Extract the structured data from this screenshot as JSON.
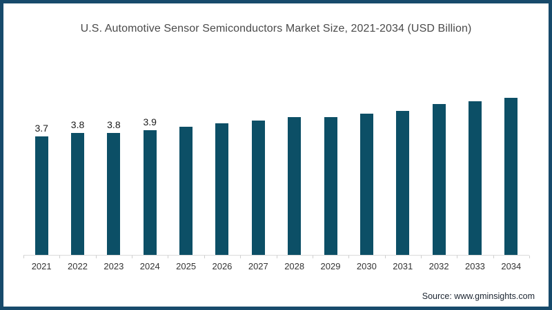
{
  "page": {
    "border_color": "#174a6b",
    "background": "#ffffff"
  },
  "source": {
    "label": "Source: www.gminsights.com"
  },
  "chart_data": {
    "type": "bar",
    "title": "U.S. Automotive Sensor Semiconductors Market Size, 2021-2034 (USD Billion)",
    "categories": [
      "2021",
      "2022",
      "2023",
      "2024",
      "2025",
      "2026",
      "2027",
      "2028",
      "2029",
      "2030",
      "2031",
      "2032",
      "2033",
      "2034"
    ],
    "values": [
      3.7,
      3.8,
      3.8,
      3.9,
      4.0,
      4.1,
      4.2,
      4.3,
      4.3,
      4.4,
      4.5,
      4.7,
      4.8,
      4.9
    ],
    "data_labels": [
      "3.7",
      "3.8",
      "3.8",
      "3.9",
      "",
      "",
      "",
      "",
      "",
      "",
      "",
      "",
      "",
      ""
    ],
    "xlabel": "",
    "ylabel": "",
    "ylim": [
      0,
      5.5
    ],
    "grid": false,
    "legend": false,
    "bar_color": "#0c4f66",
    "axis_color": "#d9d9d9",
    "value_label_color": "#1a1a1a",
    "tick_label_color": "#333333",
    "title_color": "#4a4a4a"
  }
}
